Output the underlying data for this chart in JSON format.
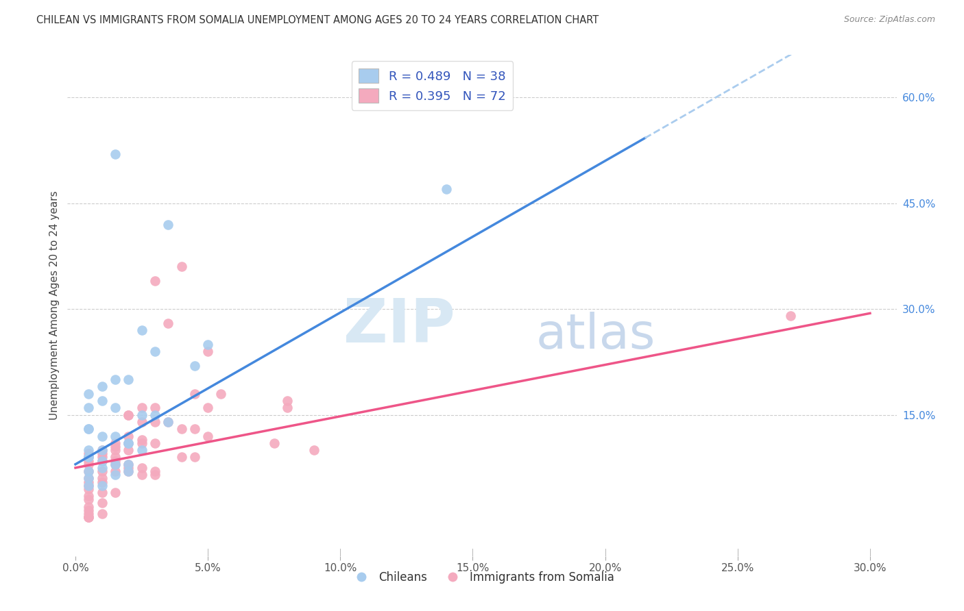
{
  "title": "CHILEAN VS IMMIGRANTS FROM SOMALIA UNEMPLOYMENT AMONG AGES 20 TO 24 YEARS CORRELATION CHART",
  "source": "Source: ZipAtlas.com",
  "xlabel_vals": [
    0.0,
    5.0,
    10.0,
    15.0,
    20.0,
    25.0,
    30.0
  ],
  "ylabel_vals": [
    15.0,
    30.0,
    45.0,
    60.0
  ],
  "xlim_min": -0.3,
  "xlim_max": 31.0,
  "ylim_min": -5.0,
  "ylim_max": 66.0,
  "ylabel": "Unemployment Among Ages 20 to 24 years",
  "legend_label1": "R = 0.489   N = 38",
  "legend_label2": "R = 0.395   N = 72",
  "legend_footer1": "Chileans",
  "legend_footer2": "Immigrants from Somalia",
  "blue_scatter_color": "#A8CCEE",
  "pink_scatter_color": "#F4AABE",
  "blue_line_color": "#4488DD",
  "pink_line_color": "#EE5588",
  "dashed_line_color": "#AACCEE",
  "grid_color": "#CCCCCC",
  "title_color": "#333333",
  "source_color": "#888888",
  "right_axis_color": "#4488DD",
  "legend_text_color": "#3355BB",
  "blue_line_x_start": 0.0,
  "blue_line_x_solid_end": 21.5,
  "blue_line_x_dash_end": 31.0,
  "blue_line_y_at_0": 8.0,
  "blue_line_slope": 2.15,
  "pink_line_x_start": 0.0,
  "pink_line_x_end": 30.0,
  "pink_line_y_at_0": 7.5,
  "pink_line_slope": 0.73,
  "chileans_x": [
    1.5,
    3.5,
    2.5,
    5.0,
    3.0,
    4.5,
    1.5,
    2.0,
    1.0,
    0.5,
    1.0,
    0.5,
    1.5,
    2.5,
    3.0,
    3.5,
    0.5,
    0.5,
    1.0,
    1.5,
    2.0,
    2.0,
    2.5,
    1.0,
    0.5,
    0.5,
    0.5,
    1.0,
    1.5,
    2.0,
    1.0,
    0.5,
    2.0,
    1.5,
    0.5,
    1.0,
    0.5,
    14.0
  ],
  "chileans_y": [
    52.0,
    42.0,
    27.0,
    25.0,
    24.0,
    22.0,
    20.0,
    20.0,
    19.0,
    18.0,
    17.0,
    16.0,
    16.0,
    15.0,
    15.0,
    14.0,
    13.0,
    13.0,
    12.0,
    12.0,
    11.0,
    11.0,
    10.0,
    10.0,
    10.0,
    9.0,
    9.0,
    8.5,
    8.0,
    8.0,
    7.5,
    7.0,
    7.0,
    6.5,
    6.0,
    5.0,
    5.0,
    47.0
  ],
  "somalia_x": [
    4.0,
    3.0,
    3.5,
    5.0,
    5.5,
    5.0,
    3.0,
    2.5,
    2.0,
    2.5,
    3.0,
    3.5,
    4.0,
    4.5,
    5.0,
    8.0,
    2.0,
    2.5,
    1.5,
    2.0,
    2.5,
    3.0,
    1.5,
    2.0,
    1.0,
    1.5,
    0.5,
    1.0,
    1.5,
    0.5,
    1.0,
    0.5,
    1.0,
    1.5,
    2.0,
    0.5,
    1.5,
    2.0,
    2.5,
    3.0,
    0.5,
    1.0,
    1.5,
    2.0,
    2.5,
    3.0,
    0.5,
    1.0,
    0.5,
    1.0,
    0.5,
    0.5,
    1.0,
    1.5,
    0.5,
    0.5,
    1.0,
    0.5,
    0.5,
    0.5,
    1.0,
    0.5,
    2.0,
    4.5,
    4.5,
    4.0,
    0.5,
    0.5,
    7.5,
    8.0,
    9.0,
    27.0
  ],
  "somalia_y": [
    36.0,
    34.0,
    28.0,
    24.0,
    18.0,
    16.0,
    16.0,
    16.0,
    15.0,
    14.0,
    14.0,
    14.0,
    13.0,
    13.0,
    12.0,
    17.0,
    12.0,
    11.5,
    11.0,
    11.0,
    11.0,
    11.0,
    10.5,
    10.0,
    10.0,
    10.0,
    9.5,
    9.5,
    9.0,
    9.0,
    9.0,
    8.5,
    8.5,
    8.5,
    8.0,
    8.0,
    8.0,
    7.5,
    7.5,
    7.0,
    7.0,
    7.0,
    7.0,
    7.0,
    6.5,
    6.5,
    6.0,
    6.0,
    5.5,
    5.5,
    5.0,
    4.5,
    4.0,
    4.0,
    3.5,
    3.0,
    2.5,
    2.0,
    1.5,
    1.0,
    1.0,
    0.5,
    15.0,
    18.0,
    9.0,
    9.0,
    0.5,
    0.5,
    11.0,
    16.0,
    10.0,
    29.0
  ]
}
